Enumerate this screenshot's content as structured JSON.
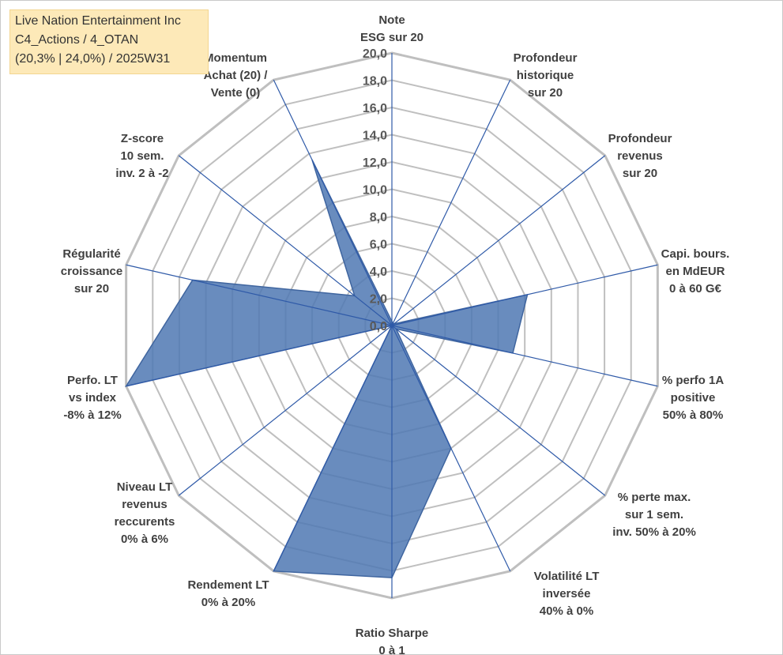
{
  "info_box": {
    "line1": "Live Nation Entertainment Inc",
    "line2": "C4_Actions / 4_OTAN",
    "line3": "(20,3% | 24,0%) / 2025W31"
  },
  "colors": {
    "series_fill": "#4f78b3",
    "series_stroke": "#3f659f",
    "spoke": "#2f5aa8",
    "grid": "#bfbfbf",
    "info_bg": "#fde9b8"
  },
  "chart_data": {
    "type": "radar",
    "title": "",
    "rmin": 0,
    "rmax": 20,
    "tick_step": 2,
    "tick_labels": [
      "0,0",
      "2,0",
      "4,0",
      "6,0",
      "8,0",
      "10,0",
      "12,0",
      "14,0",
      "16,0",
      "18,0",
      "20,0"
    ],
    "axes": [
      [
        "Note",
        "ESG sur 20"
      ],
      [
        "Profondeur",
        "historique",
        "sur 20"
      ],
      [
        "Profondeur",
        "revenus",
        "sur 20"
      ],
      [
        "Capi. bours.",
        "en MdEUR",
        "0 à 60 G€"
      ],
      [
        "% perfo 1A",
        "positive",
        "50% à 80%"
      ],
      [
        "% perte max.",
        "sur 1 sem.",
        "inv. 50% à 20%"
      ],
      [
        "Volatilité LT",
        "inversée",
        "40% à 0%"
      ],
      [
        "Ratio Sharpe",
        "0 à 1"
      ],
      [
        "Rendement LT",
        "0% à 20%"
      ],
      [
        "Niveau LT",
        "revenus",
        "reccurents",
        "0% à 6%"
      ],
      [
        "Perfo. LT",
        "vs index",
        "-8% à 12%"
      ],
      [
        "Régularité",
        "croissance",
        "sur 20"
      ],
      [
        "Z-score",
        "10 sem.",
        "inv. 2 à -2"
      ],
      [
        "Momentum",
        "Achat (20) /",
        "Vente (0)"
      ]
    ],
    "series": [
      {
        "values": [
          0.3,
          0.2,
          0.2,
          10.2,
          9.1,
          0.4,
          10.0,
          18.5,
          20.0,
          0.0,
          20.0,
          15.0,
          3.5,
          13.5
        ]
      }
    ]
  }
}
